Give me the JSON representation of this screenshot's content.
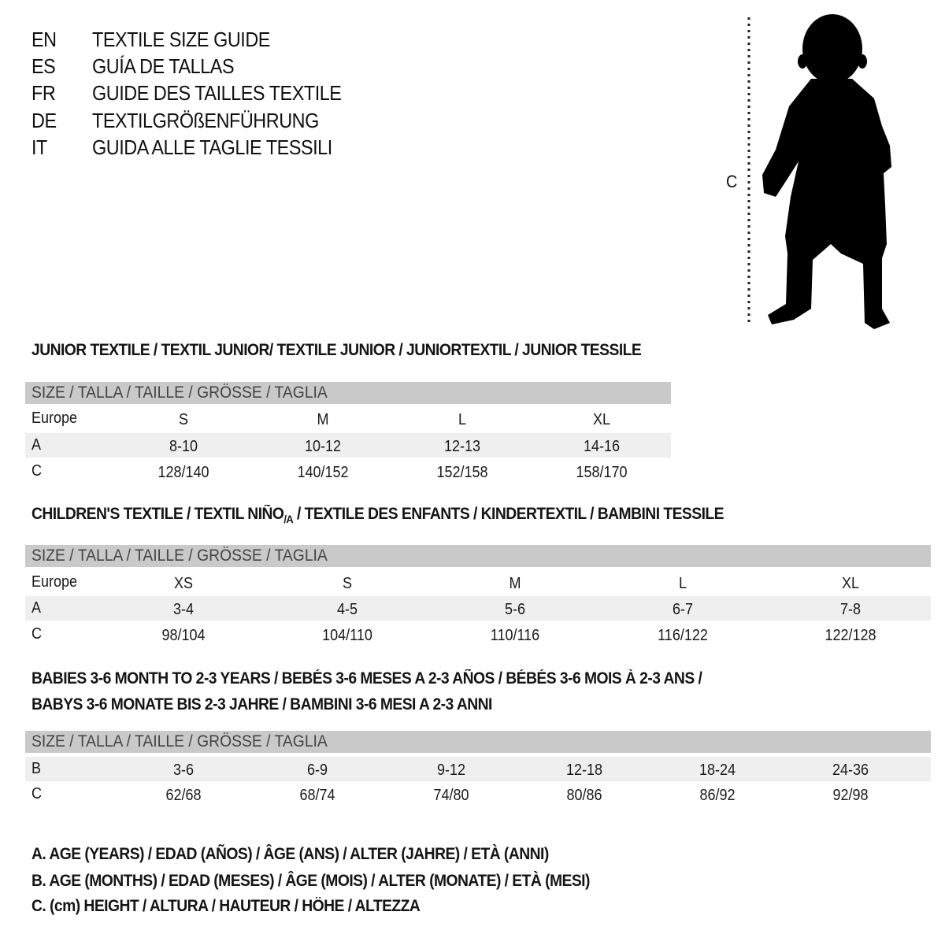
{
  "header": {
    "lines": [
      {
        "code": "EN",
        "text": "TEXTILE SIZE GUIDE"
      },
      {
        "code": "ES",
        "text": "GUÍA DE TALLAS"
      },
      {
        "code": "FR",
        "text": "GUIDE DES TAILLES TEXTILE"
      },
      {
        "code": "DE",
        "text": "TEXTILGRÖßENFÜHRUNG"
      },
      {
        "code": "IT",
        "text": "GUIDA ALLE TAGLIE TESSILI"
      }
    ]
  },
  "figure": {
    "measure_label": "C",
    "icon": "child-silhouette"
  },
  "colors": {
    "header_band": "#c9c9c9",
    "row_band": "#efefef",
    "text": "#111111"
  },
  "sections": [
    {
      "title": "JUNIOR TEXTILE / TEXTIL JUNIOR/ TEXTILE JUNIOR / JUNIORTEXTIL / JUNIOR TESSILE",
      "size_header": "SIZE / TALLA / TAILLE / GRÖSSE / TAGLIA",
      "rows": [
        {
          "label": "Europe",
          "values": [
            "S",
            "M",
            "L",
            "XL"
          ]
        },
        {
          "label": "A",
          "values": [
            "8-10",
            "10-12",
            "12-13",
            "14-16"
          ]
        },
        {
          "label": "C",
          "values": [
            "128/140",
            "140/152",
            "152/158",
            "158/170"
          ]
        }
      ]
    },
    {
      "title": "CHILDREN'S TEXTILE / TEXTIL NIÑO",
      "title_sub": "/A",
      "title_rest": " / TEXTILE DES ENFANTS / KINDERTEXTIL / BAMBINI TESSILE",
      "size_header": "SIZE / TALLA / TAILLE / GRÖSSE / TAGLIA",
      "rows": [
        {
          "label": "Europe",
          "values": [
            "XS",
            "S",
            "M",
            "L",
            "XL"
          ]
        },
        {
          "label": "A",
          "values": [
            "3-4",
            "4-5",
            "5-6",
            "6-7",
            "7-8"
          ]
        },
        {
          "label": "C",
          "values": [
            "98/104",
            "104/110",
            "110/116",
            "116/122",
            "122/128"
          ]
        }
      ]
    },
    {
      "title": "BABIES 3-6 MONTH TO 2-3 YEARS / BEBÉS 3-6 MESES A 2-3 AÑOS / BÉBÉS 3-6 MOIS À 2-3 ANS /",
      "title2": "BABYS 3-6 MONATE BIS 2-3 JAHRE / BAMBINI 3-6 MESI A 2-3 ANNI",
      "size_header": "SIZE / TALLA / TAILLE / GRÖSSE / TAGLIA",
      "rows": [
        {
          "label": "B",
          "values": [
            "3-6",
            "6-9",
            "9-12",
            "12-18",
            "18-24",
            "24-36"
          ]
        },
        {
          "label": "C",
          "values": [
            "62/68",
            "68/74",
            "74/80",
            "80/86",
            "86/92",
            "92/98"
          ]
        }
      ]
    }
  ],
  "legend": [
    "A. AGE (YEARS) / EDAD (AÑOS) / ÂGE (ANS) / ALTER (JAHRE) / ETÀ (ANNI)",
    "B. AGE (MONTHS) / EDAD (MESES) / ÂGE (MOIS) / ALTER (MONATE) / ETÀ (MESI)",
    "C. (cm) HEIGHT / ALTURA / HAUTEUR / HÖHE / ALTEZZA"
  ]
}
